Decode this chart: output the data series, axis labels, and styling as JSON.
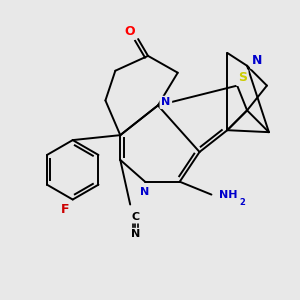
{
  "background_color": "#e8e8e8",
  "figure_size": [
    3.0,
    3.0
  ],
  "dpi": 100,
  "atom_colors": {
    "C": "#000000",
    "N": "#0000cc",
    "O": "#ff0000",
    "S": "#cccc00",
    "F": "#cc0000",
    "H": "#000000"
  },
  "bond_color": "#000000",
  "bond_width": 1.4
}
